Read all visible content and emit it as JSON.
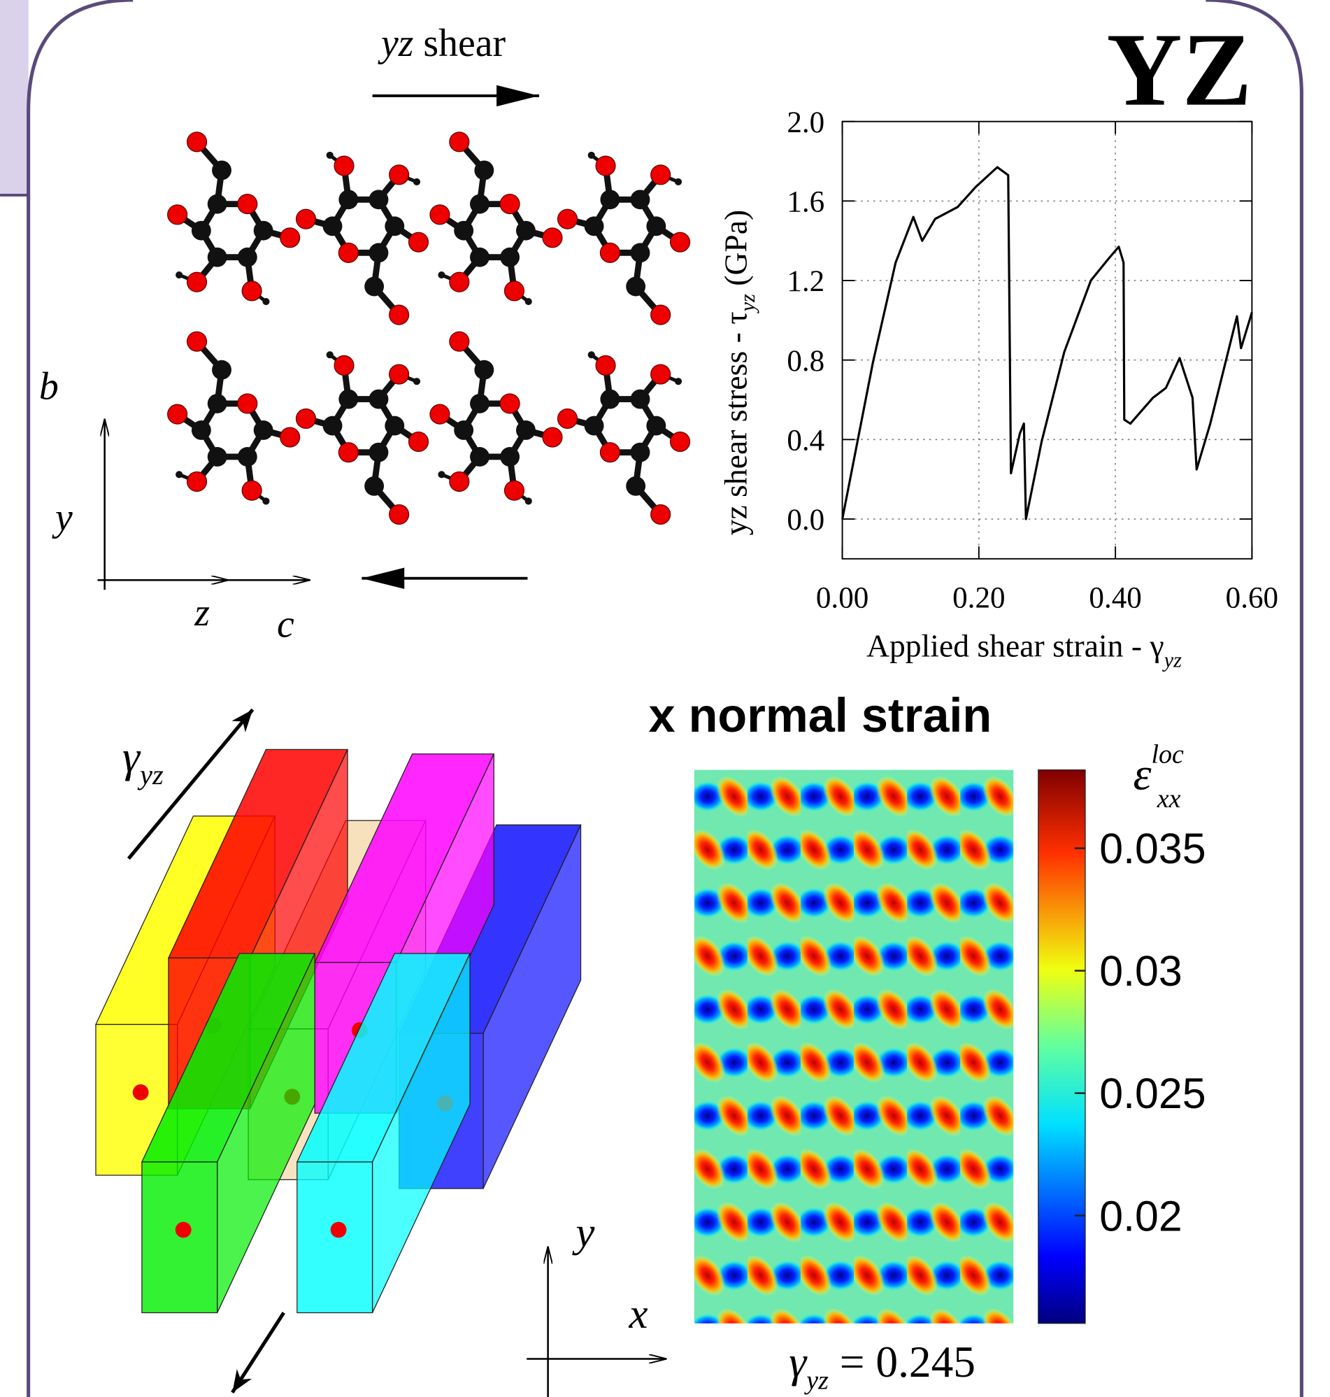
{
  "header": {
    "title": "YZ"
  },
  "structure_panel": {
    "shear_label": {
      "italic": "yz",
      "text": "shear"
    },
    "axis_labels": {
      "b": "b",
      "y": "y",
      "z": "z",
      "c": "c"
    }
  },
  "model_panel": {
    "strain_label": {
      "symbol": "γ",
      "subscript": "yz"
    },
    "axis_labels": {
      "x": "x",
      "y": "y"
    }
  },
  "chart_data": [
    {
      "type": "line",
      "x_label": {
        "text": "Applied shear strain - γ",
        "subscript": "yz"
      },
      "y_label": {
        "text": "yz shear stress - τ",
        "subscript": "yz",
        "unit": "(GPa)"
      },
      "x": [
        0,
        0.045,
        0.078,
        0.104,
        0.117,
        0.136,
        0.169,
        0.195,
        0.227,
        0.243,
        0.247,
        0.26,
        0.266,
        0.269,
        0.292,
        0.325,
        0.364,
        0.39,
        0.405,
        0.412,
        0.413,
        0.422,
        0.455,
        0.474,
        0.494,
        0.513,
        0.519,
        0.539,
        0.578,
        0.584,
        0.6
      ],
      "values": [
        0,
        0.79,
        1.29,
        1.52,
        1.4,
        1.51,
        1.57,
        1.67,
        1.77,
        1.73,
        0.23,
        0.43,
        0.48,
        0,
        0.39,
        0.84,
        1.2,
        1.31,
        1.37,
        1.29,
        0.5,
        0.48,
        0.61,
        0.66,
        0.81,
        0.61,
        0.25,
        0.48,
        1.02,
        0.86,
        1.04
      ],
      "color": "#000000",
      "xlim": [
        0,
        0.6
      ],
      "ylim": [
        -0.2,
        2.0
      ],
      "xticks": [
        {
          "value": 0,
          "label": "0.00"
        },
        {
          "value": 0.2,
          "label": "0.20"
        },
        {
          "value": 0.4,
          "label": "0.40"
        },
        {
          "value": 0.6,
          "label": "0.60"
        }
      ],
      "yticks": [
        {
          "value": 0,
          "label": "0.0"
        },
        {
          "value": 0.4,
          "label": "0.4"
        },
        {
          "value": 0.8,
          "label": "0.8"
        },
        {
          "value": 1.2,
          "label": "1.2"
        },
        {
          "value": 1.6,
          "label": "1.6"
        },
        {
          "value": 2.0,
          "label": "2.0"
        }
      ],
      "grid": true
    },
    {
      "type": "heatmap",
      "title": "x normal strain",
      "colorbar": {
        "symbol": "ε",
        "superscript": "loc",
        "subscript": "xx",
        "clim": [
          0.0156,
          0.0382
        ],
        "ticks": [
          0.02,
          0.025,
          0.03,
          0.035
        ],
        "colormap": "jet"
      },
      "caption": {
        "symbol": "γ",
        "subscript": "yz",
        "text": "= 0.245"
      }
    }
  ]
}
